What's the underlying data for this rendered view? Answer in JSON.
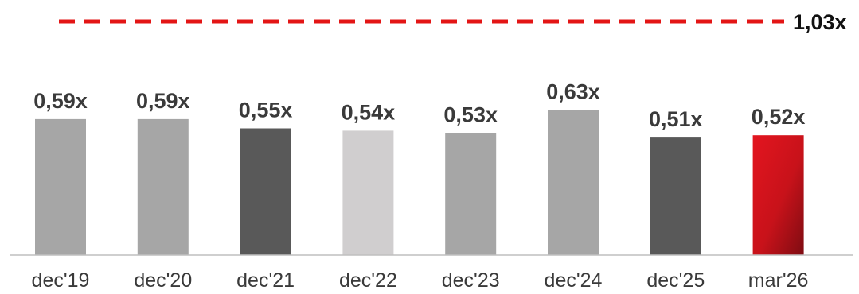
{
  "chart_data": {
    "type": "bar",
    "categories": [
      "dec'19",
      "dec'20",
      "dec'21",
      "dec'22",
      "dec'23",
      "dec'24",
      "dec'25",
      "mar'26"
    ],
    "values": [
      0.59,
      0.59,
      0.55,
      0.54,
      0.53,
      0.63,
      0.51,
      0.52
    ],
    "value_labels": [
      "0,59x",
      "0,59x",
      "0,55x",
      "0,54x",
      "0,53x",
      "0,63x",
      "0,51x",
      "0,52x"
    ],
    "bar_colors": [
      "#a6a6a6",
      "#a6a6a6",
      "#595959",
      "#d0cecf",
      "#a6a6a6",
      "#a6a6a6",
      "#595959",
      "#d7141c"
    ],
    "highlight_gradient": [
      "#e3151f",
      "#7e0c12"
    ],
    "reference_line": {
      "value": 1.03,
      "label": "1,03x",
      "color": "#e31515",
      "style": "dashed"
    },
    "ylim": [
      0,
      1.03
    ],
    "grid": false,
    "legend": "none"
  }
}
